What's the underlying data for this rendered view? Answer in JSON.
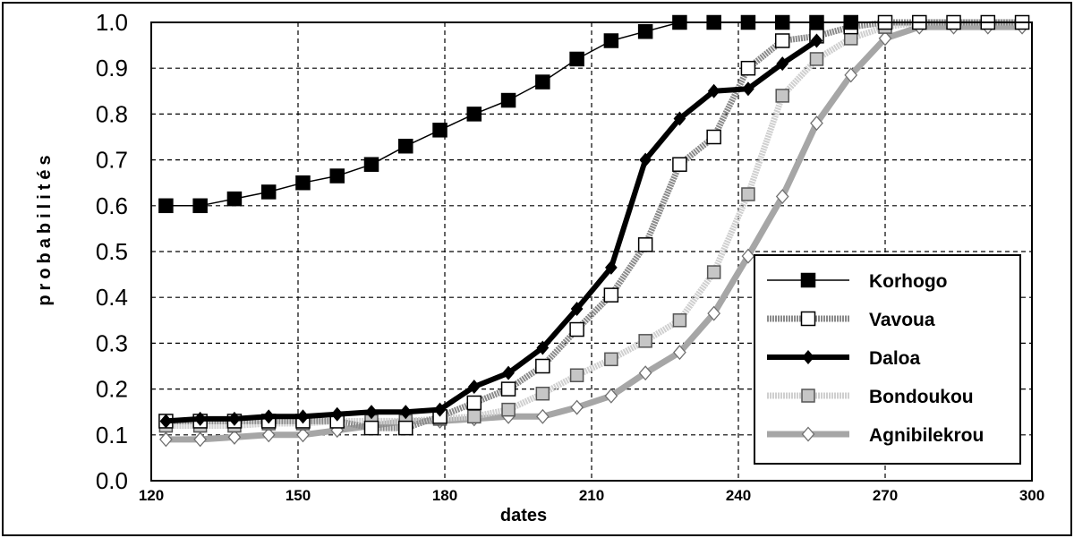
{
  "chart_data": {
    "type": "line",
    "title": "",
    "xlabel": "dates",
    "ylabel": "probabilités",
    "xlim": [
      120,
      300
    ],
    "ylim": [
      0,
      1
    ],
    "xticks": [
      "120",
      "150",
      "180",
      "210",
      "240",
      "270",
      "300"
    ],
    "yticks": [
      "0.0",
      "0.1",
      "0.2",
      "0.3",
      "0.4",
      "0.5",
      "0.6",
      "0.7",
      "0.8",
      "0.9",
      "1.0"
    ],
    "grid": true,
    "legend_position": "bottom-right",
    "series": [
      {
        "name": "Korhogo",
        "style": "thin-black-filled-square",
        "color": "#000000",
        "x": [
          123,
          130,
          137,
          144,
          151,
          158,
          165,
          172,
          179,
          186,
          193,
          200,
          207,
          214,
          221,
          228,
          235,
          242,
          249,
          256,
          263
        ],
        "y": [
          0.6,
          0.6,
          0.615,
          0.63,
          0.65,
          0.665,
          0.69,
          0.73,
          0.765,
          0.8,
          0.83,
          0.87,
          0.92,
          0.96,
          0.98,
          1.0,
          1.0,
          1.0,
          1.0,
          1.0,
          1.0
        ]
      },
      {
        "name": "Vavoua",
        "style": "gray-hatched-open-square",
        "color": "#888888",
        "x": [
          123,
          130,
          137,
          144,
          151,
          158,
          165,
          172,
          179,
          186,
          193,
          200,
          207,
          214,
          221,
          228,
          235,
          242,
          249,
          256,
          263,
          270,
          277,
          284,
          291,
          298
        ],
        "y": [
          0.13,
          0.13,
          0.13,
          0.13,
          0.13,
          0.13,
          0.115,
          0.115,
          0.14,
          0.17,
          0.2,
          0.25,
          0.33,
          0.405,
          0.515,
          0.69,
          0.75,
          0.9,
          0.96,
          0.97,
          0.99,
          1.0,
          1.0,
          1.0,
          1.0,
          1.0
        ]
      },
      {
        "name": "Daloa",
        "style": "thick-black-diamond",
        "color": "#000000",
        "x": [
          123,
          130,
          137,
          144,
          151,
          158,
          165,
          172,
          179,
          186,
          193,
          200,
          207,
          214,
          221,
          228,
          235,
          242,
          249,
          256
        ],
        "y": [
          0.13,
          0.135,
          0.135,
          0.14,
          0.14,
          0.145,
          0.15,
          0.15,
          0.155,
          0.205,
          0.235,
          0.29,
          0.375,
          0.465,
          0.7,
          0.79,
          0.85,
          0.855,
          0.91,
          0.96
        ]
      },
      {
        "name": "Bondoukou",
        "style": "light-gray-open-square-gray-fill",
        "color": "#c8c8c8",
        "x": [
          123,
          130,
          137,
          144,
          151,
          158,
          165,
          172,
          179,
          186,
          193,
          200,
          207,
          214,
          221,
          228,
          235,
          242,
          249,
          256,
          263,
          270,
          277,
          284,
          291,
          298
        ],
        "y": [
          0.12,
          0.12,
          0.12,
          0.125,
          0.125,
          0.13,
          0.13,
          0.13,
          0.135,
          0.14,
          0.155,
          0.19,
          0.23,
          0.265,
          0.305,
          0.35,
          0.455,
          0.625,
          0.84,
          0.92,
          0.965,
          0.99,
          1.0,
          1.0,
          1.0,
          1.0
        ]
      },
      {
        "name": "Agnibilekrou",
        "style": "thick-gray-open-diamond",
        "color": "#9a9a9a",
        "x": [
          123,
          130,
          137,
          144,
          151,
          158,
          165,
          172,
          179,
          186,
          193,
          200,
          207,
          214,
          221,
          228,
          235,
          242,
          249,
          256,
          263,
          270,
          277,
          284,
          291,
          298
        ],
        "y": [
          0.09,
          0.09,
          0.095,
          0.1,
          0.1,
          0.11,
          0.12,
          0.13,
          0.13,
          0.135,
          0.14,
          0.14,
          0.16,
          0.185,
          0.235,
          0.28,
          0.365,
          0.49,
          0.62,
          0.78,
          0.885,
          0.965,
          0.99,
          0.99,
          0.99,
          0.99
        ]
      }
    ]
  }
}
